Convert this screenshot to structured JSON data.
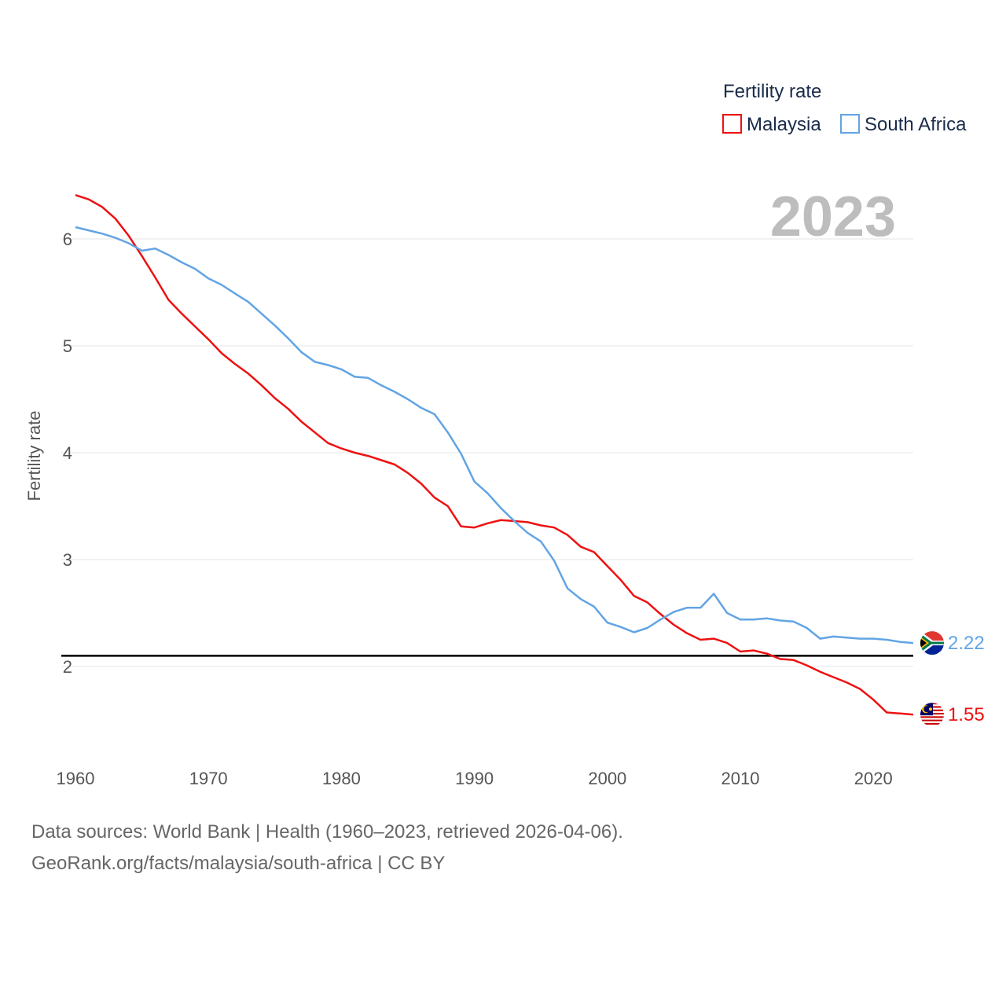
{
  "chart_data": {
    "type": "line",
    "legend_title": "Fertility rate",
    "ylabel": "Fertility rate",
    "year_label": "2023",
    "xlim": [
      1960,
      2023
    ],
    "ylim": [
      1.3,
      6.5
    ],
    "x_ticks": [
      1960,
      1970,
      1980,
      1990,
      2000,
      2010,
      2020
    ],
    "y_ticks": [
      2,
      3,
      4,
      5,
      6
    ],
    "reference_line": 2.1,
    "series": [
      {
        "name": "Malaysia",
        "color": "#ee1111",
        "end_label": "1.55",
        "flag": "malaysia-flag",
        "x": [
          1960,
          1961,
          1962,
          1963,
          1964,
          1965,
          1966,
          1967,
          1968,
          1969,
          1970,
          1971,
          1972,
          1973,
          1974,
          1975,
          1976,
          1977,
          1978,
          1979,
          1980,
          1981,
          1982,
          1983,
          1984,
          1985,
          1986,
          1987,
          1988,
          1989,
          1990,
          1991,
          1992,
          1993,
          1994,
          1995,
          1996,
          1997,
          1998,
          1999,
          2000,
          2001,
          2002,
          2003,
          2004,
          2005,
          2006,
          2007,
          2008,
          2009,
          2010,
          2011,
          2012,
          2013,
          2014,
          2015,
          2016,
          2017,
          2018,
          2019,
          2020,
          2021,
          2022,
          2023
        ],
        "values": [
          6.41,
          6.37,
          6.3,
          6.19,
          6.03,
          5.84,
          5.64,
          5.43,
          5.3,
          5.18,
          5.06,
          4.93,
          4.83,
          4.74,
          4.63,
          4.51,
          4.41,
          4.29,
          4.19,
          4.09,
          4.04,
          4.0,
          3.97,
          3.93,
          3.89,
          3.81,
          3.71,
          3.58,
          3.5,
          3.31,
          3.3,
          3.34,
          3.37,
          3.36,
          3.35,
          3.32,
          3.3,
          3.23,
          3.12,
          3.07,
          2.94,
          2.81,
          2.66,
          2.6,
          2.49,
          2.39,
          2.31,
          2.25,
          2.26,
          2.22,
          2.14,
          2.15,
          2.12,
          2.07,
          2.06,
          2.01,
          1.95,
          1.9,
          1.85,
          1.79,
          1.69,
          1.57,
          1.56,
          1.55
        ]
      },
      {
        "name": "South Africa",
        "color": "#62a4e4",
        "end_label": "2.22",
        "flag": "south-africa-flag",
        "x": [
          1960,
          1961,
          1962,
          1963,
          1964,
          1965,
          1966,
          1967,
          1968,
          1969,
          1970,
          1971,
          1972,
          1973,
          1974,
          1975,
          1976,
          1977,
          1978,
          1979,
          1980,
          1981,
          1982,
          1983,
          1984,
          1985,
          1986,
          1987,
          1988,
          1989,
          1990,
          1991,
          1992,
          1993,
          1994,
          1995,
          1996,
          1997,
          1998,
          1999,
          2000,
          2001,
          2002,
          2003,
          2004,
          2005,
          2006,
          2007,
          2008,
          2009,
          2010,
          2011,
          2012,
          2013,
          2014,
          2015,
          2016,
          2017,
          2018,
          2019,
          2020,
          2021,
          2022,
          2023
        ],
        "values": [
          6.11,
          6.08,
          6.05,
          6.01,
          5.96,
          5.89,
          5.91,
          5.85,
          5.78,
          5.72,
          5.63,
          5.57,
          5.49,
          5.41,
          5.3,
          5.19,
          5.07,
          4.94,
          4.85,
          4.82,
          4.78,
          4.71,
          4.7,
          4.63,
          4.57,
          4.5,
          4.42,
          4.36,
          4.19,
          3.99,
          3.73,
          3.62,
          3.48,
          3.36,
          3.25,
          3.17,
          2.99,
          2.73,
          2.63,
          2.56,
          2.41,
          2.37,
          2.32,
          2.36,
          2.44,
          2.51,
          2.55,
          2.55,
          2.68,
          2.5,
          2.44,
          2.44,
          2.45,
          2.43,
          2.42,
          2.36,
          2.26,
          2.28,
          2.27,
          2.26,
          2.26,
          2.25,
          2.23,
          2.22
        ]
      }
    ]
  },
  "footer": {
    "line1": "Data sources: World Bank | Health (1960–2023, retrieved 2026-04-06).",
    "line2": "GeoRank.org/facts/malaysia/south-africa | CC BY"
  }
}
